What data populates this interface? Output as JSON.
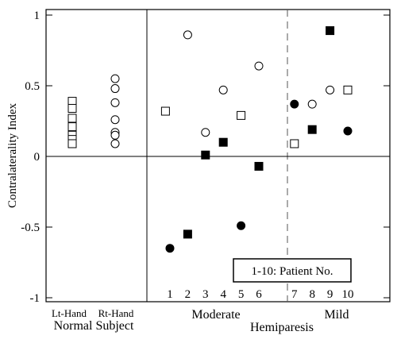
{
  "chart_data": {
    "type": "scatter",
    "ylabel": "Contralaterality Index",
    "ylim": [
      -1.05,
      1.05
    ],
    "yticks": [
      1,
      0.5,
      0,
      -0.5,
      -1
    ],
    "ytick_labels": [
      "1",
      "0.5",
      "0",
      "-0.5",
      "-1"
    ],
    "legend_box": "1-10: Patient No.",
    "patient_numbers": [
      "1",
      "2",
      "3",
      "4",
      "5",
      "6",
      "7",
      "8",
      "9",
      "10"
    ],
    "group_labels": {
      "lt_hand": "Lt-Hand",
      "rt_hand": "Rt-Hand",
      "normal_subject": "Normal Subject",
      "moderate": "Moderate",
      "hemiparesis": "Hemiparesis",
      "mild": "Mild"
    },
    "normal_subject": {
      "lt_hand_squares": [
        0.39,
        0.34,
        0.27,
        0.21,
        0.15,
        0.12,
        0.09
      ],
      "rt_hand_circles": [
        0.55,
        0.48,
        0.38,
        0.26,
        0.17,
        0.15,
        0.09
      ]
    },
    "patients": [
      {
        "patient": 1,
        "open_square": null,
        "filled_square": null,
        "open_circle": null,
        "filled_circle": -0.65
      },
      {
        "patient": 2,
        "open_square": null,
        "filled_square": -0.55,
        "open_circle": 0.86,
        "filled_circle": null
      },
      {
        "patient": 3,
        "open_square": null,
        "filled_square": 0.01,
        "open_circle": 0.17,
        "filled_circle": null
      },
      {
        "patient": 4,
        "open_square": null,
        "filled_square": 0.1,
        "open_circle": 0.47,
        "filled_circle": null
      },
      {
        "patient": 5,
        "open_square": 0.29,
        "filled_square": null,
        "open_circle": null,
        "filled_circle": -0.49
      },
      {
        "patient": 6,
        "open_square": null,
        "filled_square": -0.07,
        "open_circle": 0.64,
        "filled_circle": null
      },
      {
        "patient": 7,
        "open_square": 0.09,
        "filled_square": null,
        "open_circle": null,
        "filled_circle": 0.37
      },
      {
        "patient": 8,
        "open_square": null,
        "filled_square": 0.19,
        "open_circle": 0.37,
        "filled_circle": null
      },
      {
        "patient": 9,
        "open_square": null,
        "filled_square": 0.89,
        "open_circle": 0.47,
        "filled_circle": null
      },
      {
        "patient": 10,
        "open_square": 0.47,
        "filled_square": null,
        "open_circle": null,
        "filled_circle": 0.18
      }
    ],
    "extra_points": [
      {
        "position": 0.75,
        "marker": "open_square",
        "value": 0.32
      }
    ]
  }
}
